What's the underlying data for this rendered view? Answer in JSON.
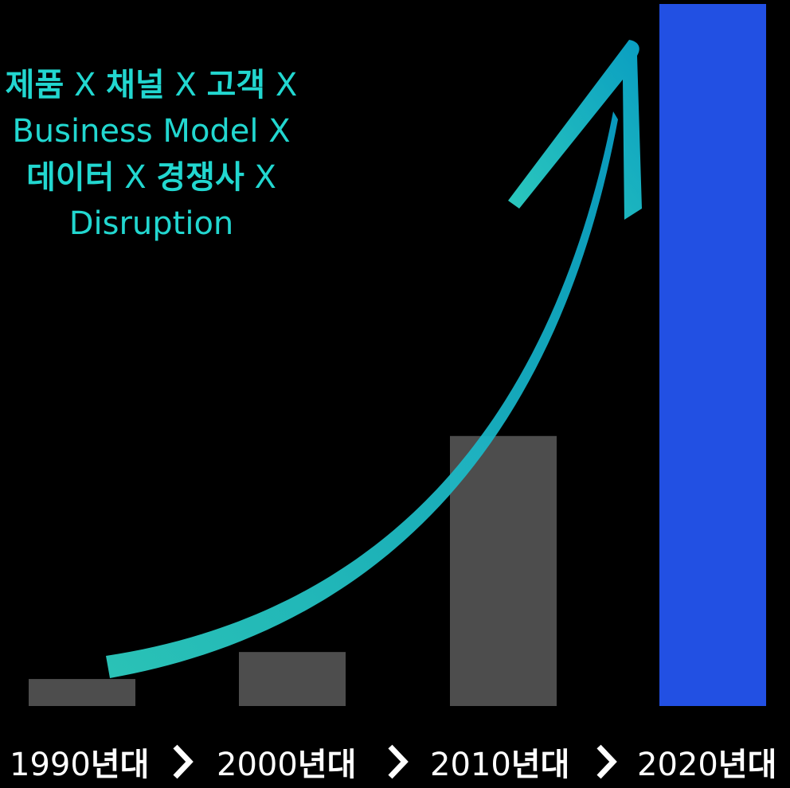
{
  "chart_data": {
    "type": "bar",
    "categories": [
      "1990",
      "2000",
      "2010",
      "2020"
    ],
    "category_unit": "년대",
    "values": [
      1,
      2,
      10,
      26
    ],
    "colors": [
      "#4d4d4d",
      "#4d4d4d",
      "#4d4d4d",
      "#2250e3"
    ],
    "title": "",
    "xlabel": "",
    "ylabel": "",
    "ylim": [
      0,
      26
    ],
    "grid": false,
    "legend": "none",
    "annotation": {
      "lines": [
        [
          {
            "text": "제품",
            "bold": true
          },
          {
            "text": " X ",
            "bold": false
          },
          {
            "text": "채널",
            "bold": true
          },
          {
            "text": " X ",
            "bold": false
          },
          {
            "text": "고객",
            "bold": true
          },
          {
            "text": " X",
            "bold": false
          }
        ],
        [
          {
            "text": "Business Model X",
            "bold": false
          }
        ],
        [
          {
            "text": "데이터",
            "bold": true
          },
          {
            "text": " X ",
            "bold": false
          },
          {
            "text": "경쟁사",
            "bold": true
          },
          {
            "text": " X",
            "bold": false
          }
        ],
        [
          {
            "text": "Disruption",
            "bold": false
          }
        ]
      ],
      "color": "#22d7d0"
    },
    "trend_arrow": {
      "color_start": "#2ed3c6",
      "color_end": "#0aa6cc",
      "direction": "up-right"
    }
  }
}
